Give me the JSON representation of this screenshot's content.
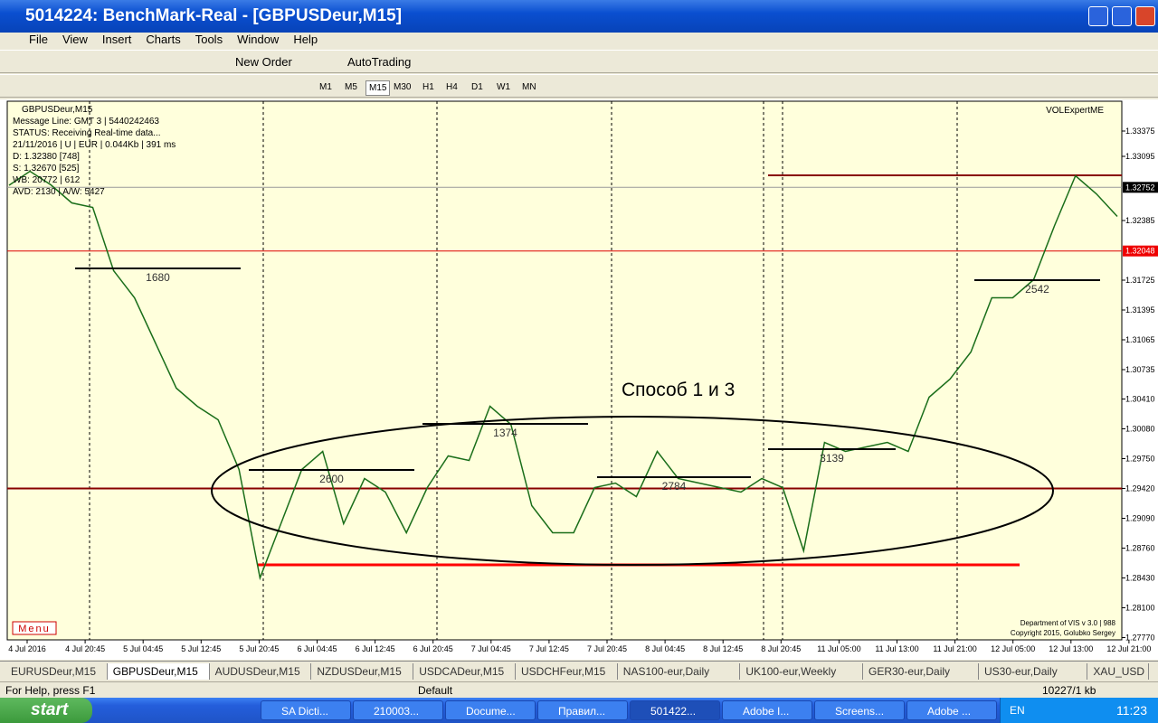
{
  "window": {
    "title": "5014224: BenchMark-Real - [GBPUSDeur,M15]"
  },
  "menu": [
    "File",
    "View",
    "Insert",
    "Charts",
    "Tools",
    "Window",
    "Help"
  ],
  "toolbar": {
    "new_order": "New Order",
    "autotrading": "AutoTrading"
  },
  "timeframes": [
    "M1",
    "M5",
    "M15",
    "M30",
    "H1",
    "H4",
    "D1",
    "W1",
    "MN"
  ],
  "active_timeframe": 2,
  "chart": {
    "info": [
      "GBPUSDeur,M15",
      "Message Line: GMT 3 | 5440242463",
      "STATUS:  Receiving Real-time data...",
      "21/11/2016 | U | EUR | 0.044Kb | 391 ms",
      "D: 1.32380  [748]",
      "S: 1.32670  [525]",
      "WB: 20772 | 612",
      "AVD: 2130 | A/W: 5427"
    ],
    "expert": "VOLExpertME",
    "menu_button": "Menu",
    "copyright": [
      "Department of VIS  v 3.0 | 988",
      "Copyright 2015, Golubko Sergey"
    ],
    "annotation": "Способ 1 и 3",
    "ylim": [
      1.2775,
      1.337
    ],
    "yticks": [
      1.33375,
      1.33095,
      1.32385,
      1.31725,
      1.31395,
      1.31065,
      1.30735,
      {
        "value": 1.3041,
        "label": "1.30410"
      },
      {
        "value": 1.3008,
        "label": "1.30080"
      },
      {
        "value": 1.2975,
        "label": "1.29750"
      },
      {
        "value": 1.2942,
        "label": "1.29420"
      },
      {
        "value": 1.2909,
        "label": "1.29090"
      },
      {
        "value": 1.2876,
        "label": "1.28760"
      },
      {
        "value": 1.2843,
        "label": "1.28430"
      },
      {
        "value": 1.281,
        "label": "1.28100"
      },
      {
        "value": 1.2777,
        "label": "1.27770"
      }
    ],
    "bid": 1.32752,
    "level_red": 1.32048,
    "level_darkred": 1.2942,
    "level_top": 1.32885,
    "level_support": 1.28575,
    "xticks": [
      "4 Jul 2016",
      "4 Jul 20:45",
      "5 Jul 04:45",
      "5 Jul 12:45",
      "5 Jul 20:45",
      "6 Jul 04:45",
      "6 Jul 12:45",
      "6 Jul 20:45",
      "7 Jul 04:45",
      "7 Jul 12:45",
      "7 Jul 20:45",
      "8 Jul 04:45",
      "8 Jul 12:45",
      "8 Jul 20:45",
      "11 Jul 05:00",
      "11 Jul 13:00",
      "11 Jul 21:00",
      "12 Jul 05:00",
      "12 Jul 13:00",
      "12 Jul 21:00"
    ],
    "prices": [
      1.32775,
      1.3293,
      1.3278,
      1.3258,
      1.3253,
      1.3183,
      1.3153,
      1.3103,
      1.3053,
      1.3033,
      1.3018,
      1.2963,
      1.2843,
      1.2903,
      1.2963,
      1.2983,
      1.2903,
      1.2953,
      1.2938,
      1.2893,
      1.2943,
      1.2978,
      1.2973,
      1.3033,
      1.3013,
      1.2923,
      1.2893,
      1.2893,
      1.2943,
      1.2948,
      1.2933,
      1.2983,
      1.2953,
      1.2948,
      1.2943,
      1.2938,
      1.2953,
      1.2943,
      1.2873,
      1.2993,
      1.2983,
      1.2988,
      1.2993,
      1.2983,
      1.3043,
      1.3063,
      1.3093,
      1.3153,
      1.3153,
      1.3173,
      1.3233,
      1.3288,
      1.3268,
      1.3243
    ],
    "zones": [
      {
        "label": "1680",
        "value": 1.31855
      },
      {
        "label": "2600",
        "value": 1.29625
      },
      {
        "label": "1374",
        "value": 1.30135
      },
      {
        "label": "2784",
        "value": 1.29545
      },
      {
        "label": "3139",
        "value": 1.29855
      },
      {
        "label": "2542",
        "value": 1.31725
      }
    ]
  },
  "tabs": [
    "EURUSDeur,M15",
    "GBPUSDeur,M15",
    "AUDUSDeur,M15",
    "NZDUSDeur,M15",
    "USDCADeur,M15",
    "USDCHFeur,M15",
    "NAS100-eur,Daily",
    "UK100-eur,Weekly",
    "GER30-eur,Daily",
    "US30-eur,Daily",
    "XAU_USD"
  ],
  "active_tab": 1,
  "status": {
    "help": "For Help, press F1",
    "profile": "Default",
    "traffic": "10227/1 kb"
  },
  "taskbar": {
    "start": "start",
    "items": [
      "SA Dicti...",
      "210003...",
      "Docume...",
      "Правил...",
      "501422...",
      "Adobe I...",
      "Screens...",
      "Adobe ..."
    ],
    "lang": "EN",
    "clock": "11:23"
  }
}
